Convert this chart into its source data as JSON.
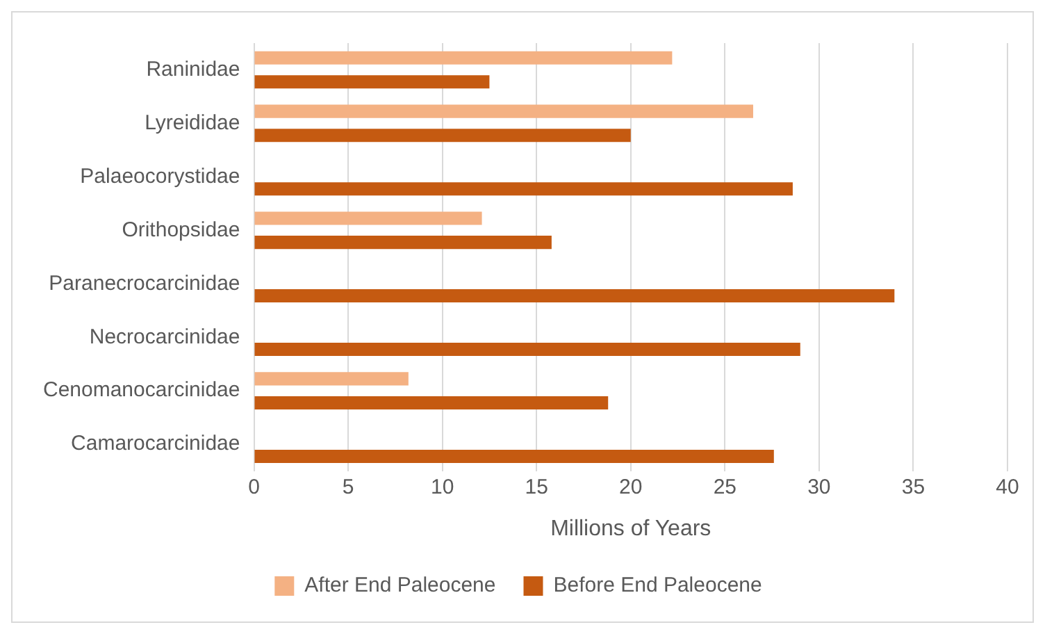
{
  "chart_data": {
    "type": "bar",
    "orientation": "horizontal",
    "xlabel": "Millions of Years",
    "categories": [
      "Raninidae",
      "Lyreididae",
      "Palaeocorystidae",
      "Orithopsidae",
      "Paranecrocarcinidae",
      "Necrocarcinidae",
      "Cenomanocarcinidae",
      "Camarocarcinidae"
    ],
    "series": [
      {
        "name": "After End Paleocene",
        "color": "#f4b183",
        "values": [
          22.2,
          26.5,
          null,
          12.1,
          null,
          null,
          8.2,
          null
        ]
      },
      {
        "name": "Before End Paleocene",
        "color": "#c55a11",
        "values": [
          12.5,
          20,
          28.6,
          15.8,
          34,
          29,
          18.8,
          27.6
        ]
      }
    ],
    "xlim": [
      0,
      40
    ],
    "xticks": [
      0,
      5,
      10,
      15,
      20,
      25,
      30,
      35,
      40
    ],
    "grid": "x",
    "legend": "bottom"
  }
}
